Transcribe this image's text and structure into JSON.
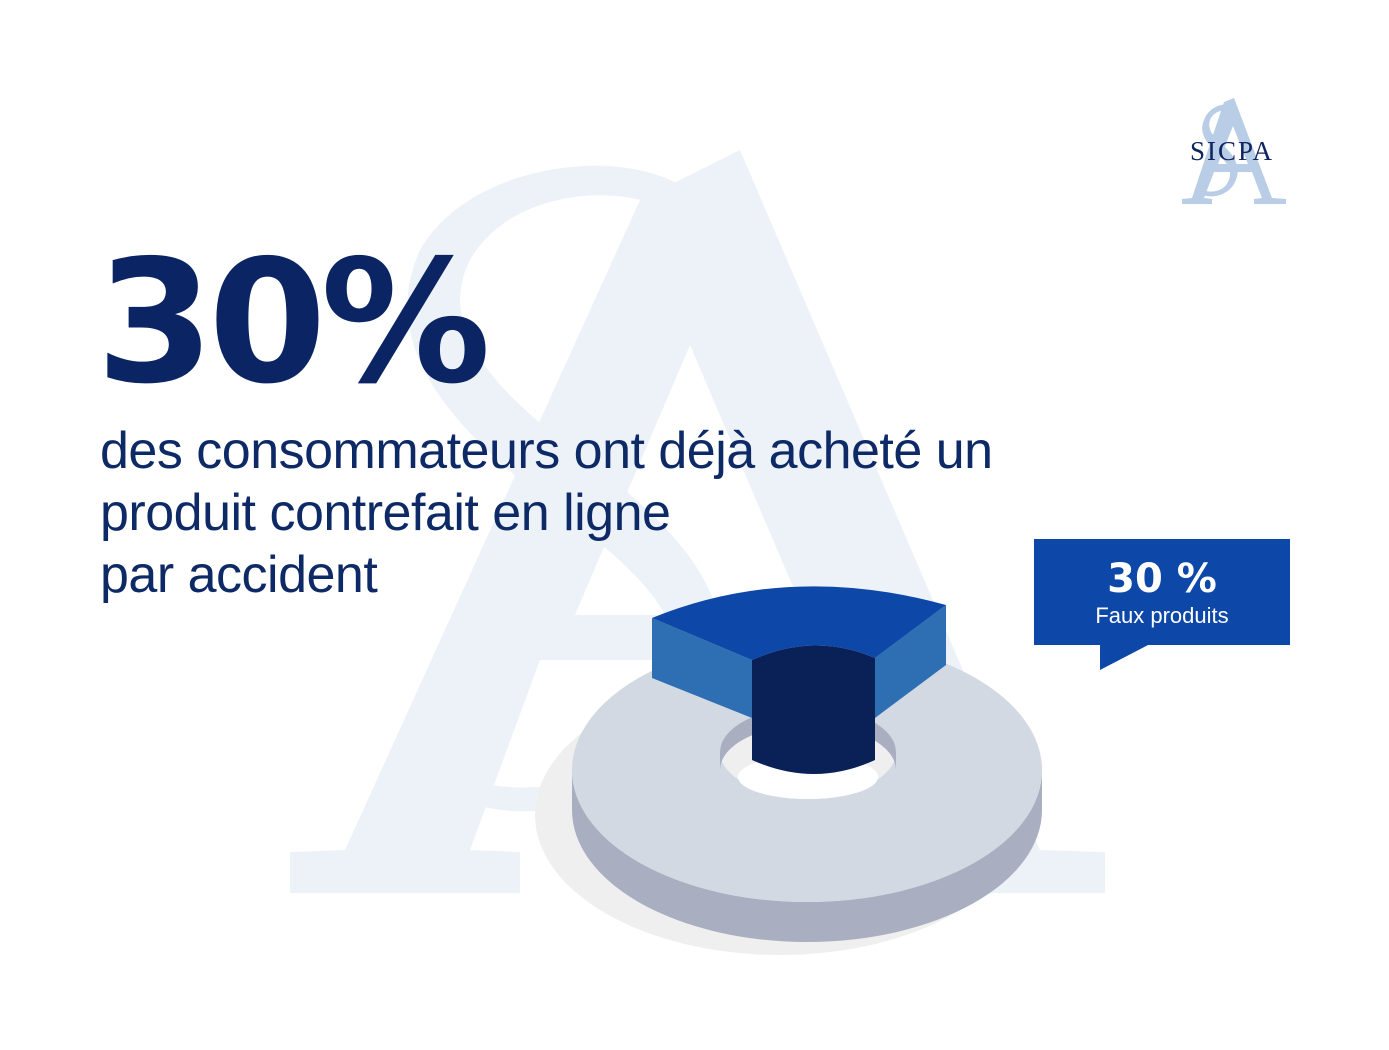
{
  "brand": {
    "name": "SICPA",
    "logo_color": "#0f2560",
    "monogram_color": "#b9cde6"
  },
  "headline": {
    "value": "30%",
    "lines": [
      "des consommateurs ont déjà acheté un",
      "produit contrefait en ligne",
      "par accident"
    ]
  },
  "callout": {
    "value": "30 %",
    "label": "Faux produits"
  },
  "colors": {
    "primary": "#0b2463",
    "accent_blue": "#0d47a8",
    "ring_grey": "#d3d9e2",
    "watermark": "#edf2f9"
  },
  "chart_data": {
    "type": "pie",
    "style": "3d-donut",
    "slices": [
      {
        "label": "Faux produits",
        "value": 30,
        "highlighted": true
      },
      {
        "label": "",
        "value": 70,
        "highlighted": false
      }
    ],
    "title": "",
    "legend": "callout-right"
  }
}
